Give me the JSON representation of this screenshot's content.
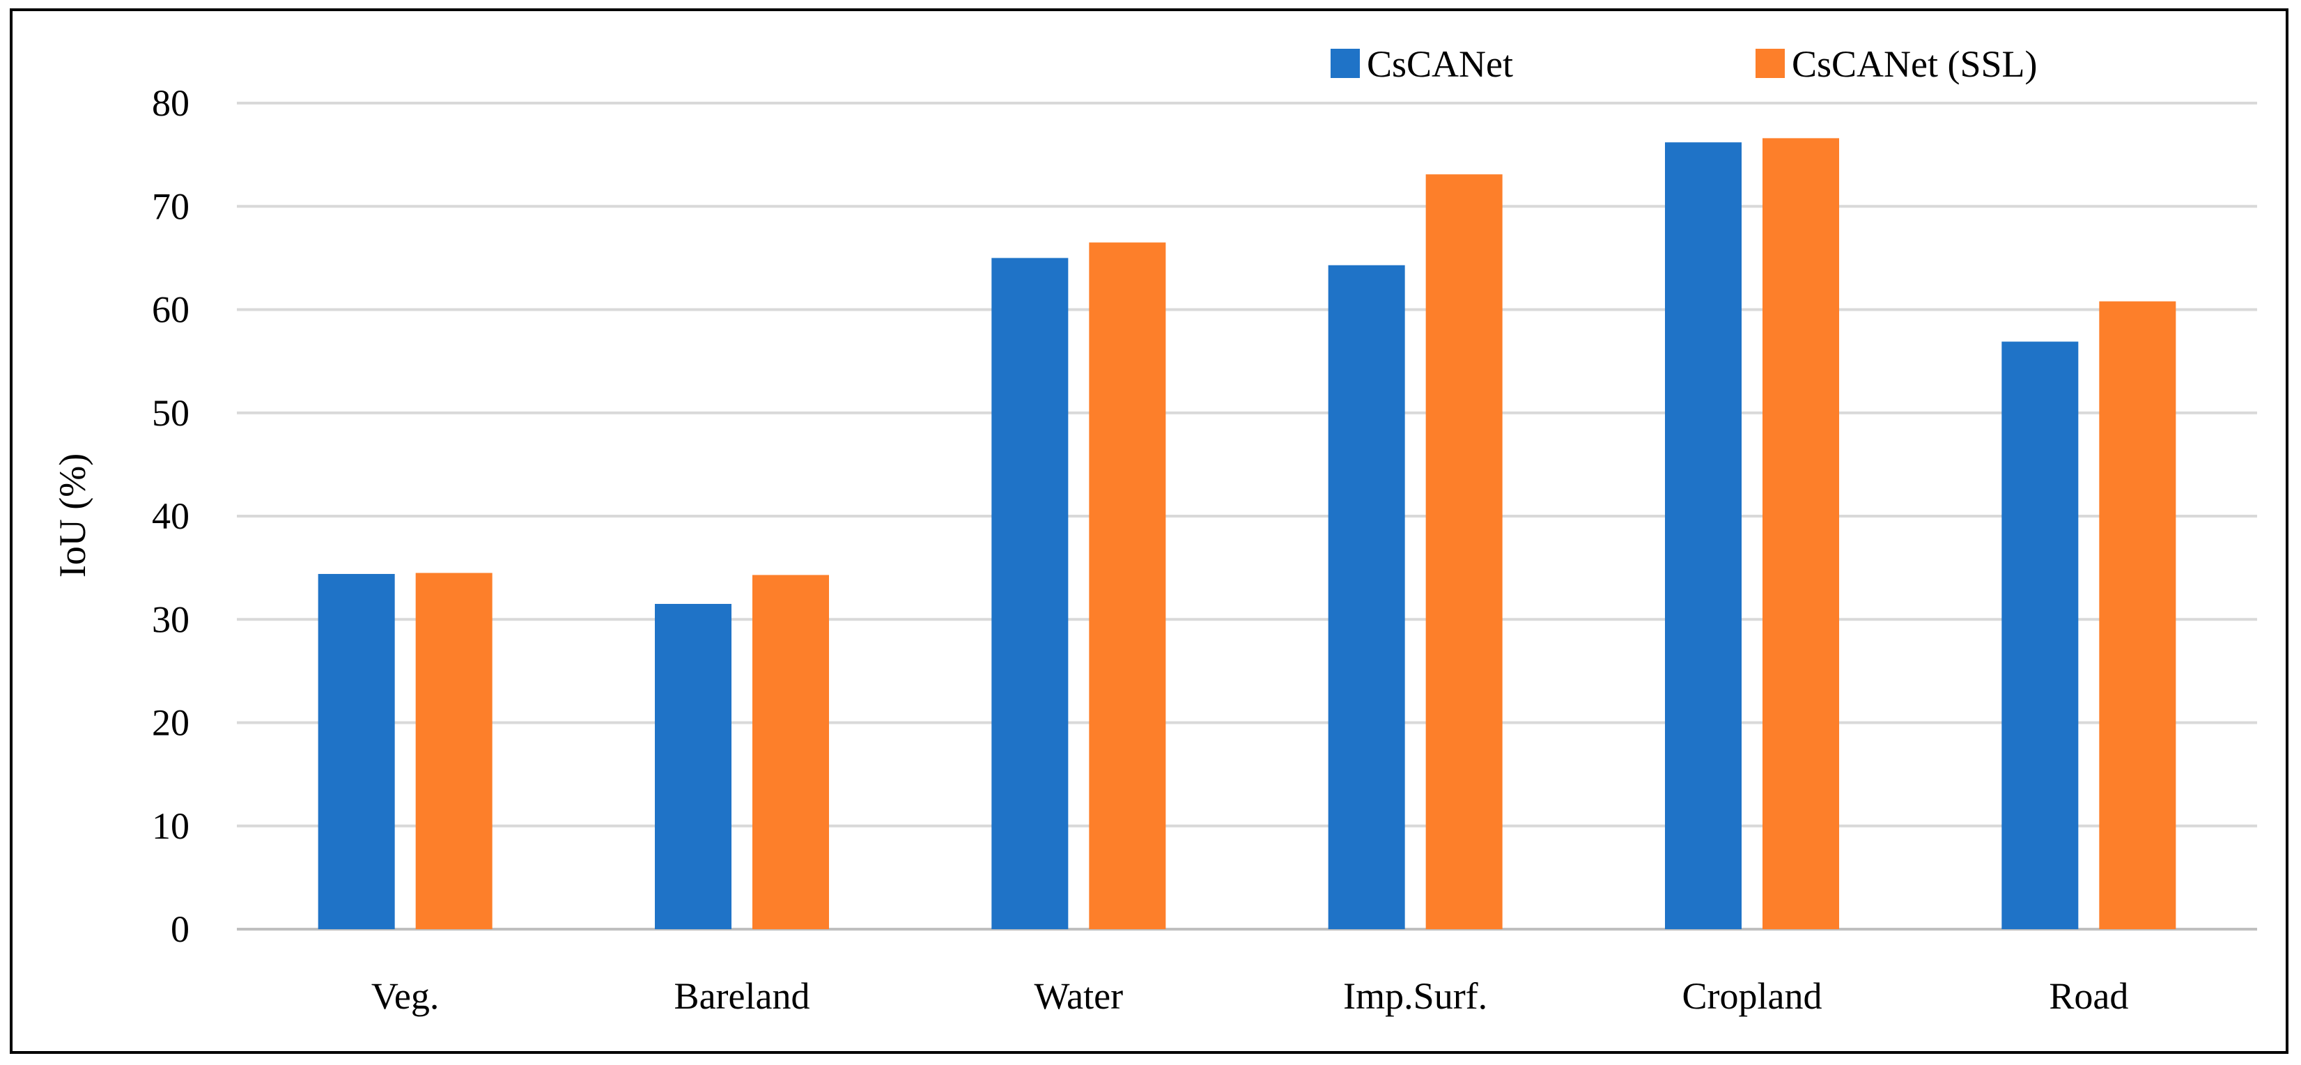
{
  "chart_data": {
    "type": "bar",
    "title": "",
    "xlabel": "",
    "ylabel": "IoU (%)",
    "ylim": [
      0,
      80
    ],
    "yticks": [
      0,
      10,
      20,
      30,
      40,
      50,
      60,
      70,
      80
    ],
    "grid": true,
    "legend_position": "top-right",
    "categories": [
      "Veg.",
      "Bareland",
      "Water",
      "Imp.Surf.",
      "Cropland",
      "Road"
    ],
    "series": [
      {
        "name": "CsCANet",
        "color": "#1f73c7",
        "values": [
          34.4,
          31.5,
          65.0,
          64.3,
          76.2,
          56.9
        ]
      },
      {
        "name": "CsCANet (SSL)",
        "color": "#fd7f2a",
        "values": [
          34.5,
          34.3,
          66.5,
          73.1,
          76.6,
          60.8
        ]
      }
    ]
  }
}
